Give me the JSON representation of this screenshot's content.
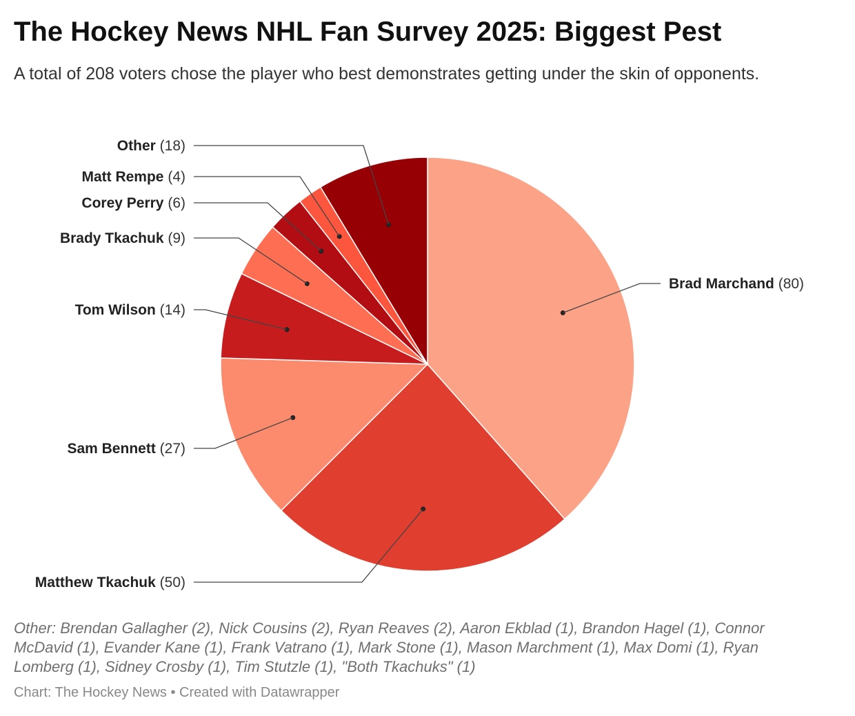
{
  "header": {
    "title": "The Hockey News NHL Fan Survey 2025: Biggest Pest",
    "subtitle": "A total of 208 voters chose the player who best demonstrates getting under the skin of opponents."
  },
  "footer": {
    "notes": "Other: Brendan Gallagher (2), Nick Cousins (2), Ryan Reaves (2), Aaron Ekblad (1), Brandon Hagel (1), Connor McDavid (1), Evander Kane (1), Frank Vatrano (1), Mark Stone (1), Mason Marchment (1), Max Domi (1), Ryan Lomberg (1), Sidney Crosby (1), Tim Stutzle (1), \"Both Tkachuks\" (1)",
    "source": "Chart: The Hockey News • Created with Datawrapper"
  },
  "chart_data": {
    "type": "pie",
    "start_angle": "12 o'clock",
    "direction": "clockwise",
    "slices": [
      {
        "label": "Brad Marchand",
        "value": 80,
        "color": "#fca287",
        "label_side": "right"
      },
      {
        "label": "Matthew Tkachuk",
        "value": 50,
        "color": "#e03e2f",
        "label_side": "left"
      },
      {
        "label": "Sam Bennett",
        "value": 27,
        "color": "#fc8a6d",
        "label_side": "left"
      },
      {
        "label": "Tom Wilson",
        "value": 14,
        "color": "#c71c1e",
        "label_side": "left"
      },
      {
        "label": "Brady Tkachuk",
        "value": 9,
        "color": "#fd6e52",
        "label_side": "left"
      },
      {
        "label": "Corey Perry",
        "value": 6,
        "color": "#b10d12",
        "label_side": "left"
      },
      {
        "label": "Matt Rempe",
        "value": 4,
        "color": "#fc573e",
        "label_side": "left"
      },
      {
        "label": "Other",
        "value": 18,
        "color": "#960004",
        "label_side": "left"
      }
    ]
  }
}
